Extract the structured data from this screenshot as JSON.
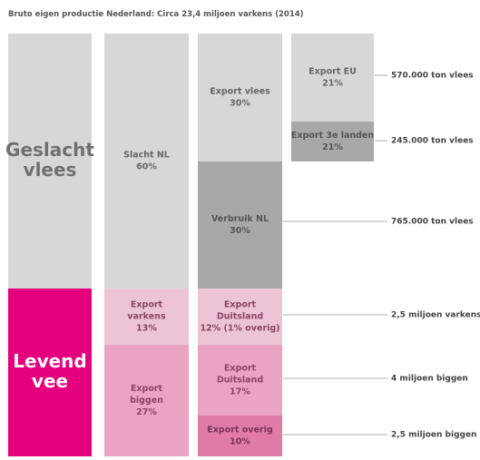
{
  "title": "Bruto eigen productie Nederland: Circa 23,4 miljoen varkens (2014)",
  "blocks": [
    {
      "lines": [
        "Geslacht",
        "vlees"
      ]
    },
    {
      "lines": [
        "Levend",
        "vee"
      ]
    },
    {
      "lines": [
        "Slacht NL",
        "60%"
      ]
    },
    {
      "lines": [
        "Export",
        "varkens",
        "13%"
      ]
    },
    {
      "lines": [
        "Export",
        "biggen",
        "27%"
      ]
    },
    {
      "lines": [
        "Export vlees",
        "30%"
      ]
    },
    {
      "lines": [
        "Verbruik NL",
        "30%"
      ]
    },
    {
      "lines": [
        "Export",
        "Duitsland",
        "12% (1% overig)"
      ]
    },
    {
      "lines": [
        "Export",
        "Duitsland",
        "17%"
      ]
    },
    {
      "lines": [
        "Export overig",
        "10%"
      ]
    },
    {
      "lines": [
        "Export EU",
        "21%"
      ]
    },
    {
      "lines": [
        "Export 3e landen",
        "21%"
      ]
    }
  ],
  "annotations": [
    "570.000 ton vlees",
    "245.000 ton vlees",
    "765.000 ton vlees",
    "2,5 miljoen varkens",
    "4 miljoen biggen",
    "2,5 miljoen biggen"
  ]
}
